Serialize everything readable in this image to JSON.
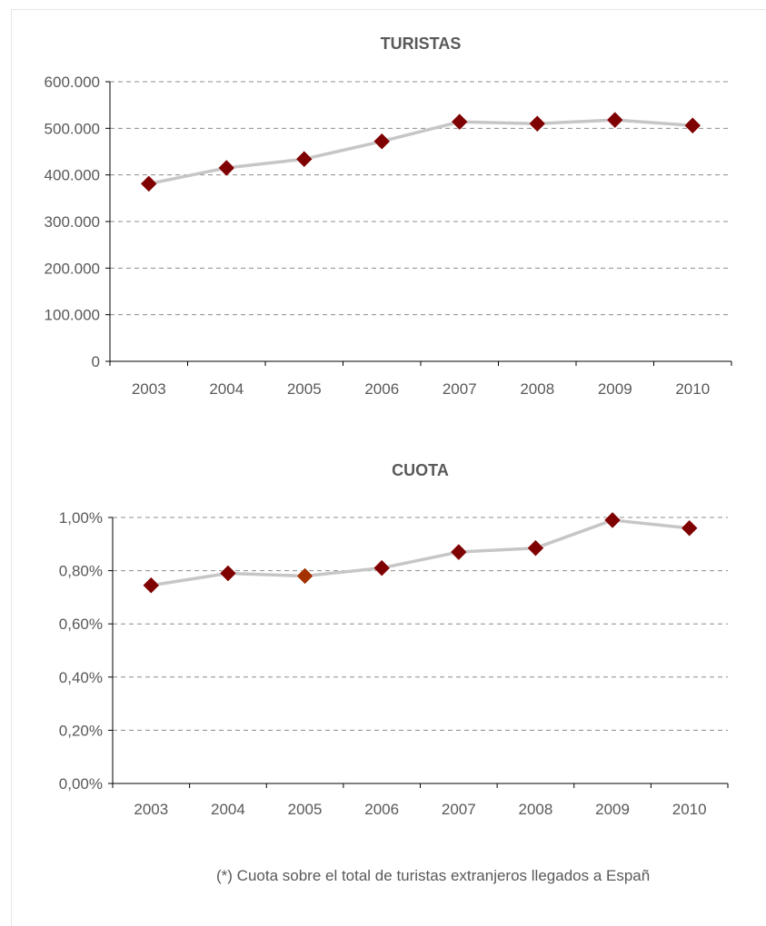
{
  "footnote": "(*) Cuota sobre el total de turistas extranjeros llegados a Españ",
  "colors": {
    "marker": "#7f0000",
    "marker_highlight": "#a33200",
    "line": "#c6c6c6",
    "grid": "#8c8c8c",
    "text": "#595959"
  },
  "chart_data": [
    {
      "type": "line",
      "title": "TURISTAS",
      "xlabel": "",
      "ylabel": "",
      "categories": [
        "2003",
        "2004",
        "2005",
        "2006",
        "2007",
        "2008",
        "2009",
        "2010"
      ],
      "values": [
        381000,
        415000,
        434000,
        472000,
        514000,
        510000,
        518000,
        506000
      ],
      "ylim": [
        0,
        600000
      ],
      "yticks": [
        0,
        100000,
        200000,
        300000,
        400000,
        500000,
        600000
      ],
      "ytick_labels": [
        "0",
        "100.000",
        "200.000",
        "300.000",
        "400.000",
        "500.000",
        "600.000"
      ],
      "grid": true,
      "legend": "none"
    },
    {
      "type": "line",
      "title": "CUOTA",
      "xlabel": "",
      "ylabel": "",
      "categories": [
        "2003",
        "2004",
        "2005",
        "2006",
        "2007",
        "2008",
        "2009",
        "2010"
      ],
      "values": [
        0.745,
        0.79,
        0.78,
        0.81,
        0.87,
        0.885,
        0.99,
        0.96
      ],
      "ylim": [
        0,
        1
      ],
      "yticks": [
        0,
        0.2,
        0.4,
        0.6,
        0.8,
        1.0
      ],
      "ytick_labels": [
        "0,00%",
        "0,20%",
        "0,40%",
        "0,60%",
        "0,80%",
        "1,00%"
      ],
      "highlight_index": 2,
      "grid": true,
      "legend": "none"
    }
  ]
}
